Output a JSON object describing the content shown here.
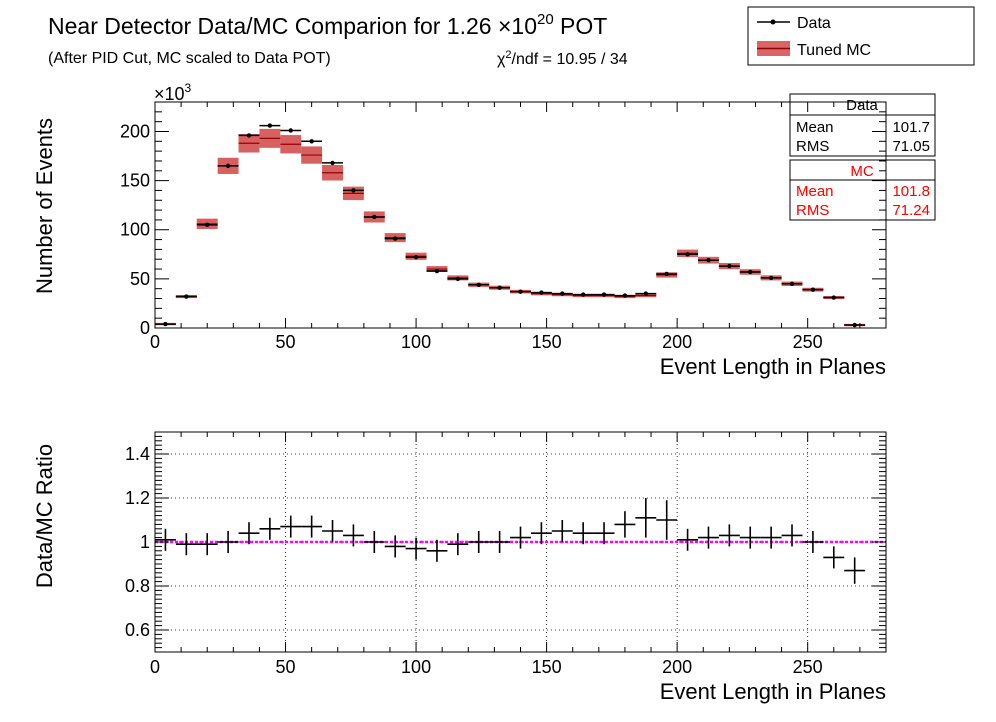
{
  "chart_data": [
    {
      "type": "line",
      "title_main": "Near Detector Data/MC Comparion for 1.26 ",
      "title_times": "×10",
      "title_exp": "20",
      "title_tail": " POT",
      "subtitle": "(After PID Cut, MC scaled to Data POT)",
      "chi2_sym": "χ",
      "chi2_exp": "2",
      "chi2_text": "/ndf = 10.95 / 34",
      "legend": {
        "data_label": "Data",
        "mc_label": "Tuned MC",
        "placement": "top-right"
      },
      "stats": {
        "data_title": "Data",
        "data_mean_label": "Mean",
        "data_mean": "101.7",
        "data_rms_label": "RMS",
        "data_rms": "71.05",
        "mc_title": "MC",
        "mc_mean_label": "Mean",
        "mc_mean": "101.8",
        "mc_rms_label": "RMS",
        "mc_rms": "71.24"
      },
      "ylabel": "Number of Events",
      "ymult_prefix": "×10",
      "ymult_exp": "3",
      "xlabel": "Event Length in Planes",
      "xlim": [
        0,
        280
      ],
      "ylim": [
        0,
        230
      ],
      "xticks": [
        "0",
        "50",
        "100",
        "150",
        "200",
        "250"
      ],
      "xtick_values": [
        0,
        50,
        100,
        150,
        200,
        250
      ],
      "yticks": [
        "0",
        "50",
        "100",
        "150",
        "200"
      ],
      "ytick_values": [
        0,
        50,
        100,
        150,
        200
      ],
      "bin_width": 8,
      "bin_centers": [
        4,
        12,
        20,
        28,
        36,
        44,
        52,
        60,
        68,
        76,
        84,
        92,
        100,
        108,
        116,
        124,
        132,
        140,
        148,
        156,
        164,
        172,
        180,
        188,
        196,
        204,
        212,
        220,
        228,
        236,
        244,
        252,
        260,
        268
      ],
      "series": [
        {
          "name": "Data",
          "color": "#000000",
          "values": [
            4,
            32,
            105,
            165,
            196,
            206,
            201,
            190,
            168,
            140,
            113,
            91,
            72,
            58,
            50,
            44,
            41,
            37,
            36,
            35,
            34,
            34,
            33,
            35,
            55,
            75,
            69,
            63,
            57,
            51,
            45,
            39,
            31,
            3
          ]
        },
        {
          "name": "Tuned MC",
          "color": "#cc3333",
          "values": [
            4,
            32,
            106,
            165,
            188,
            193,
            187,
            176,
            158,
            137,
            113,
            92,
            73,
            60,
            51,
            44,
            41,
            37,
            35,
            34,
            33,
            33,
            32,
            33,
            54,
            76,
            69,
            63,
            57,
            51,
            45,
            39,
            31,
            3
          ]
        }
      ]
    },
    {
      "type": "scatter",
      "ylabel": "Data/MC Ratio",
      "xlabel": "Event Length in Planes",
      "xlim": [
        0,
        280
      ],
      "ylim": [
        0.5,
        1.5
      ],
      "grid": true,
      "xticks": [
        "0",
        "50",
        "100",
        "150",
        "200",
        "250"
      ],
      "xtick_values": [
        0,
        50,
        100,
        150,
        200,
        250
      ],
      "yticks": [
        "0.6",
        "0.8",
        "1",
        "1.2",
        "1.4"
      ],
      "ytick_values": [
        0.6,
        0.8,
        1.0,
        1.2,
        1.4
      ],
      "reference_line": {
        "value": 1.0,
        "color": "#ff00ff"
      },
      "bin_width": 8,
      "x": [
        4,
        12,
        20,
        28,
        36,
        44,
        52,
        60,
        68,
        76,
        84,
        92,
        100,
        108,
        116,
        124,
        132,
        140,
        148,
        156,
        164,
        172,
        180,
        188,
        196,
        204,
        212,
        220,
        228,
        236,
        244,
        252,
        260,
        268
      ],
      "y": [
        1.01,
        0.99,
        0.99,
        1.0,
        1.04,
        1.06,
        1.07,
        1.07,
        1.05,
        1.03,
        1.0,
        0.98,
        0.97,
        0.96,
        0.99,
        1.0,
        1.0,
        1.02,
        1.04,
        1.05,
        1.04,
        1.04,
        1.08,
        1.11,
        1.1,
        1.01,
        1.02,
        1.03,
        1.02,
        1.02,
        1.03,
        1.0,
        0.93,
        0.87
      ],
      "yerr": [
        0.05,
        0.05,
        0.05,
        0.05,
        0.05,
        0.05,
        0.05,
        0.05,
        0.05,
        0.05,
        0.05,
        0.05,
        0.05,
        0.05,
        0.05,
        0.05,
        0.05,
        0.05,
        0.05,
        0.05,
        0.05,
        0.05,
        0.06,
        0.09,
        0.09,
        0.05,
        0.05,
        0.05,
        0.05,
        0.05,
        0.05,
        0.05,
        0.05,
        0.06
      ]
    }
  ]
}
